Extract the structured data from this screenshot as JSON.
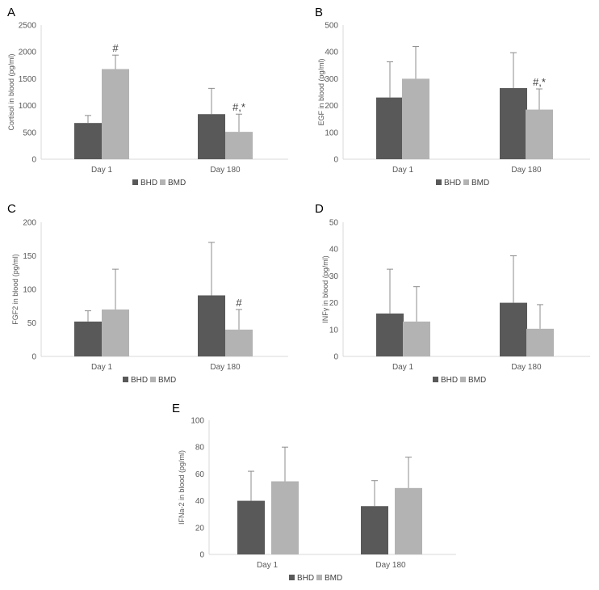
{
  "colors": {
    "BHD": "#595959",
    "BMD": "#b3b3b3",
    "axis": "#d9d9d9",
    "error": "#8c8c8c",
    "text": "#595959"
  },
  "chart_data": [
    {
      "panel": "A",
      "type": "bar",
      "categories": [
        "Day 1",
        "Day 180"
      ],
      "ylabel": "Cortisol in blood (pg/ml)",
      "ylim": [
        0,
        2500
      ],
      "yticks": [
        0,
        500,
        1000,
        1500,
        2000,
        2500
      ],
      "series": [
        {
          "name": "BHD",
          "values": [
            675,
            840
          ],
          "errors": [
            140,
            480
          ]
        },
        {
          "name": "BMD",
          "values": [
            1680,
            510
          ],
          "errors": [
            260,
            330
          ]
        }
      ],
      "annotations": [
        {
          "series": 1,
          "category": 0,
          "text": "#"
        },
        {
          "series": 1,
          "category": 1,
          "text": "#,*"
        }
      ],
      "legend": [
        "BHD",
        "BMD"
      ]
    },
    {
      "panel": "B",
      "type": "bar",
      "categories": [
        "Day 1",
        "Day 180"
      ],
      "ylabel": "EGF in blood (pg/ml)",
      "ylim": [
        0,
        500
      ],
      "yticks": [
        0,
        100,
        200,
        300,
        400,
        500
      ],
      "series": [
        {
          "name": "BHD",
          "values": [
            230,
            265
          ],
          "errors": [
            133,
            132
          ]
        },
        {
          "name": "BMD",
          "values": [
            300,
            185
          ],
          "errors": [
            120,
            77
          ]
        }
      ],
      "annotations": [
        {
          "series": 1,
          "category": 1,
          "text": "#,*"
        }
      ],
      "legend": [
        "BHD",
        "BMD"
      ]
    },
    {
      "panel": "C",
      "type": "bar",
      "categories": [
        "Day 1",
        "Day 180"
      ],
      "ylabel": "FGF2 in blood (pg/ml)",
      "ylim": [
        0,
        200
      ],
      "yticks": [
        0,
        50,
        100,
        150,
        200
      ],
      "series": [
        {
          "name": "BHD",
          "values": [
            52,
            91
          ],
          "errors": [
            16,
            79
          ]
        },
        {
          "name": "BMD",
          "values": [
            70,
            40
          ],
          "errors": [
            60,
            30
          ]
        }
      ],
      "annotations": [
        {
          "series": 1,
          "category": 1,
          "text": "#"
        }
      ],
      "legend": [
        "BHD",
        "BMD"
      ]
    },
    {
      "panel": "D",
      "type": "bar",
      "categories": [
        "Day 1",
        "Day 180"
      ],
      "ylabel": "INFγ in blood (pg/ml)",
      "ylim": [
        0,
        50
      ],
      "yticks": [
        0,
        10,
        20,
        30,
        40,
        50
      ],
      "series": [
        {
          "name": "BHD",
          "values": [
            16,
            20
          ],
          "errors": [
            16.5,
            17.5
          ]
        },
        {
          "name": "BMD",
          "values": [
            13,
            10.3
          ],
          "errors": [
            13,
            9
          ]
        }
      ],
      "annotations": [],
      "legend": [
        "BHD",
        "BMD"
      ]
    },
    {
      "panel": "E",
      "type": "bar",
      "categories": [
        "Day 1",
        "Day 180"
      ],
      "ylabel": "IFNa-2 in blood (pg/ml)",
      "ylim": [
        0,
        100
      ],
      "yticks": [
        0,
        20,
        40,
        60,
        80,
        100
      ],
      "series": [
        {
          "name": "BHD",
          "values": [
            40,
            36
          ],
          "errors": [
            22,
            19
          ]
        },
        {
          "name": "BMD",
          "values": [
            54.5,
            49.5
          ],
          "errors": [
            25.5,
            23
          ]
        }
      ],
      "annotations": [],
      "legend": [
        "BHD",
        "BMD"
      ]
    }
  ]
}
